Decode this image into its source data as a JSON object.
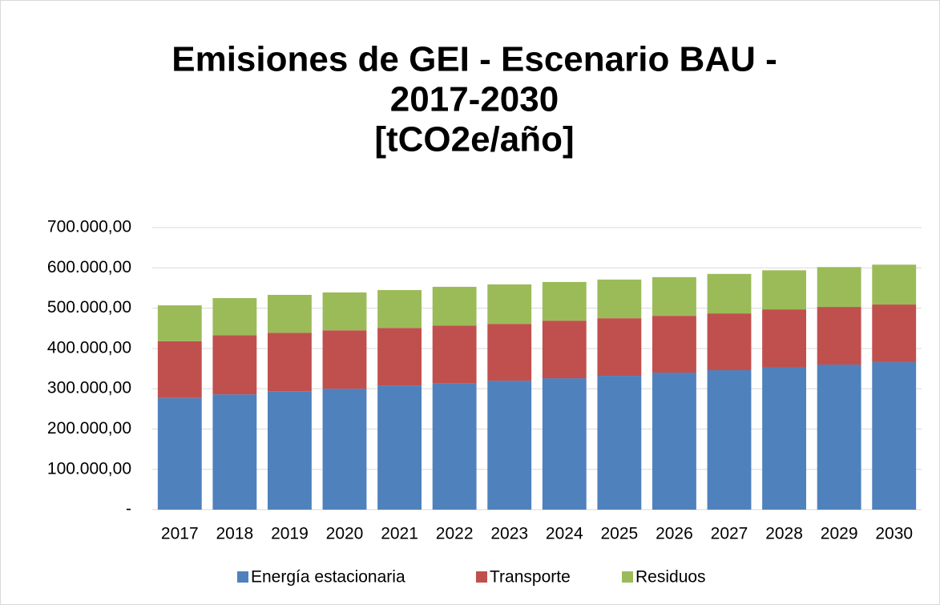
{
  "chart_data": {
    "type": "stacked_bar",
    "title": [
      "Emisiones de GEI - Escenario BAU -",
      "2017-2030",
      "[tCO2e/año]"
    ],
    "categories": [
      "2017",
      "2018",
      "2019",
      "2020",
      "2021",
      "2022",
      "2023",
      "2024",
      "2025",
      "2026",
      "2027",
      "2028",
      "2029",
      "2030"
    ],
    "series": [
      {
        "name": "Energía estacionaria",
        "color": "#4f81bd",
        "values": [
          277000,
          286000,
          294000,
          300000,
          308000,
          314000,
          320000,
          326000,
          332000,
          340000,
          346000,
          354000,
          360000,
          366000
        ]
      },
      {
        "name": "Transporte",
        "color": "#c0504d",
        "values": [
          141000,
          147000,
          145000,
          145000,
          143000,
          143000,
          141000,
          143000,
          143000,
          141000,
          141000,
          143000,
          143000,
          143000
        ]
      },
      {
        "name": "Residuos",
        "color": "#9bbb59",
        "values": [
          89000,
          92000,
          94000,
          94000,
          94000,
          96000,
          98000,
          96000,
          96000,
          96000,
          98000,
          97000,
          99000,
          99000
        ]
      }
    ],
    "ylim": [
      0,
      700000
    ],
    "yticks": [
      {
        "value": 0,
        "label": "-"
      },
      {
        "value": 100000,
        "label": "100.000,00"
      },
      {
        "value": 200000,
        "label": "200.000,00"
      },
      {
        "value": 300000,
        "label": "300.000,00"
      },
      {
        "value": 400000,
        "label": "400.000,00"
      },
      {
        "value": 500000,
        "label": "500.000,00"
      },
      {
        "value": 600000,
        "label": "600.000,00"
      },
      {
        "value": 700000,
        "label": "700.000,00"
      }
    ],
    "grid": true,
    "legend": "bottom"
  }
}
